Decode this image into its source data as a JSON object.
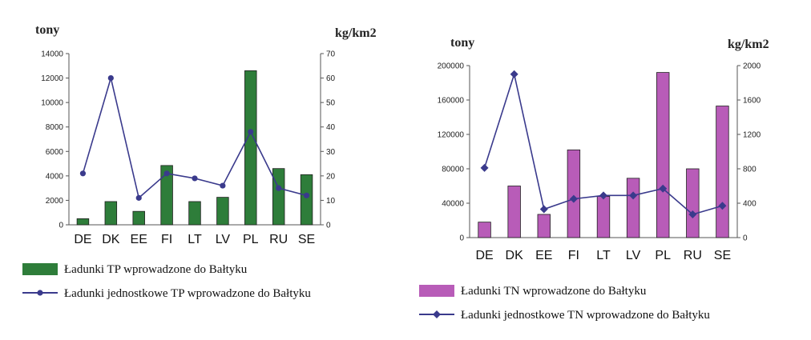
{
  "chart_data": [
    {
      "type": "bar",
      "categories": [
        "DE",
        "DK",
        "EE",
        "FI",
        "LT",
        "LV",
        "PL",
        "RU",
        "SE"
      ],
      "y_left_label": "tony",
      "y_right_label": "kg/km2",
      "ylim_left": [
        0,
        14000
      ],
      "ylim_right": [
        0,
        70
      ],
      "yticks_left": [
        "0",
        "2000",
        "4000",
        "6000",
        "8000",
        "10000",
        "12000",
        "14000"
      ],
      "yticks_right": [
        "0",
        "10",
        "20",
        "30",
        "40",
        "50",
        "60",
        "70"
      ],
      "series": [
        {
          "name": "Ładunki TP wprowadzone do Bałtyku",
          "kind": "bar",
          "axis": "left",
          "color": "#2e7d3a",
          "values": [
            500,
            1900,
            1100,
            4850,
            1900,
            2250,
            12600,
            4600,
            4100
          ]
        },
        {
          "name": "Ładunki jednostkowe TP wprowadzone do Bałtyku",
          "kind": "line",
          "axis": "right",
          "color": "#3a3a8c",
          "marker": "circle",
          "values": [
            21,
            60,
            11,
            21,
            19,
            16,
            38,
            15,
            12
          ]
        }
      ]
    },
    {
      "type": "bar",
      "categories": [
        "DE",
        "DK",
        "EE",
        "FI",
        "LT",
        "LV",
        "PL",
        "RU",
        "SE"
      ],
      "y_left_label": "tony",
      "y_right_label": "kg/km2",
      "ylim_left": [
        0,
        200000
      ],
      "ylim_right": [
        0,
        2000
      ],
      "yticks_left": [
        "0",
        "40000",
        "80000",
        "120000",
        "160000",
        "200000"
      ],
      "yticks_right": [
        "0",
        "400",
        "800",
        "1200",
        "1600",
        "2000"
      ],
      "series": [
        {
          "name": "Ładunki TN wprowadzone do Bałtyku",
          "kind": "bar",
          "axis": "left",
          "color": "#b85cb8",
          "values": [
            18000,
            60000,
            27000,
            102000,
            48000,
            69000,
            192000,
            80000,
            153000
          ]
        },
        {
          "name": "Ładunki jednostkowe TN wprowadzone do Bałtyku",
          "kind": "line",
          "axis": "right",
          "color": "#3a3a8c",
          "marker": "diamond",
          "values": [
            810,
            1900,
            330,
            450,
            490,
            490,
            570,
            270,
            370
          ]
        }
      ]
    }
  ]
}
